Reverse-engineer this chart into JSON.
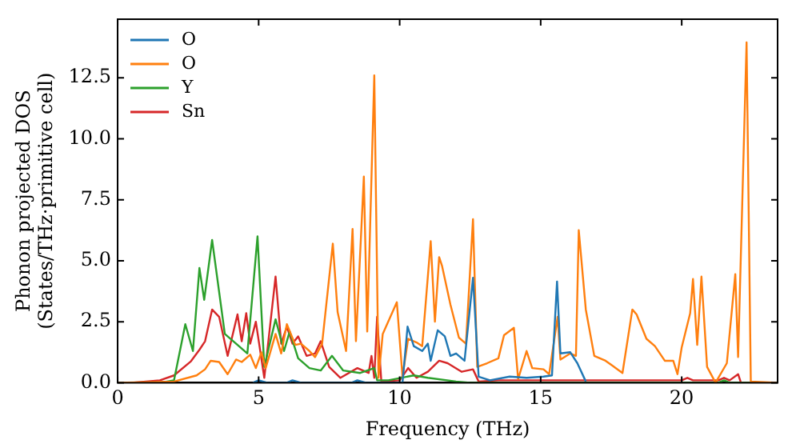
{
  "chart_data": {
    "type": "line",
    "xlabel": "Frequency (THz)",
    "ylabel": "Phonon projected DOS\n(States/THz·primitive cell)",
    "xlim": [
      0,
      23.4
    ],
    "ylim": [
      0,
      14.9
    ],
    "xticks": [
      0,
      5,
      10,
      15,
      20
    ],
    "yticks": [
      {
        "value": 0,
        "label": "0.0"
      },
      {
        "value": 2.5,
        "label": "2.5"
      },
      {
        "value": 5,
        "label": "5.0"
      },
      {
        "value": 7.5,
        "label": "7.5"
      },
      {
        "value": 10,
        "label": "10.0"
      },
      {
        "value": 12.5,
        "label": "12.5"
      }
    ],
    "legend": "top left",
    "grid": false,
    "marker": "none",
    "line_style": "solid",
    "series": [
      {
        "name": "O",
        "color": "#1f77b4",
        "x": [
          4.8,
          5.0,
          5.3,
          6.0,
          6.2,
          6.5,
          8.3,
          8.5,
          8.8,
          10.1,
          10.28,
          10.5,
          10.8,
          11.0,
          11.1,
          11.35,
          11.6,
          11.8,
          12.0,
          12.3,
          12.6,
          12.8,
          13.2,
          13.9,
          14.5,
          15.1,
          15.4,
          15.58,
          15.7,
          16.05,
          16.3,
          16.6
        ],
        "values": [
          0,
          0.1,
          0,
          0,
          0.1,
          0,
          0,
          0.1,
          0,
          0,
          2.3,
          1.5,
          1.3,
          1.6,
          0.9,
          2.15,
          1.9,
          1.1,
          1.2,
          0.9,
          4.3,
          0.25,
          0.1,
          0.25,
          0.2,
          0.25,
          0.3,
          4.15,
          1.2,
          1.25,
          0.8,
          0.05
        ]
      },
      {
        "name": "O",
        "color": "#ff7f0e",
        "x": [
          0,
          2.0,
          2.8,
          3.1,
          3.3,
          3.6,
          3.9,
          4.2,
          4.4,
          4.7,
          4.9,
          5.1,
          5.25,
          5.6,
          5.8,
          6.0,
          6.3,
          6.5,
          6.8,
          7.0,
          7.25,
          7.63,
          7.8,
          8.1,
          8.33,
          8.45,
          8.73,
          8.85,
          9.1,
          9.25,
          9.4,
          9.9,
          10.1,
          10.3,
          10.6,
          10.8,
          11.1,
          11.25,
          11.4,
          11.5,
          11.8,
          12.1,
          12.35,
          12.6,
          12.75,
          13.1,
          13.5,
          13.7,
          14.05,
          14.2,
          14.5,
          14.7,
          15.1,
          15.3,
          15.6,
          15.7,
          16.05,
          16.25,
          16.35,
          16.6,
          16.9,
          17.3,
          17.9,
          18.25,
          18.4,
          18.75,
          19.05,
          19.4,
          19.7,
          19.85,
          20.0,
          20.3,
          20.4,
          20.55,
          20.7,
          20.9,
          21.2,
          21.6,
          21.9,
          22.0,
          22.3,
          22.45,
          23.4
        ],
        "values": [
          0,
          0.05,
          0.3,
          0.55,
          0.9,
          0.85,
          0.35,
          0.95,
          0.85,
          1.15,
          0.6,
          1.25,
          0.6,
          2.0,
          1.2,
          2.4,
          1.55,
          1.6,
          1.3,
          1.05,
          1.6,
          5.7,
          2.9,
          1.3,
          6.3,
          1.7,
          8.45,
          2.1,
          12.6,
          0.2,
          2.0,
          3.3,
          0.25,
          1.8,
          1.65,
          1.5,
          5.8,
          2.5,
          5.15,
          4.8,
          3.2,
          1.85,
          1.6,
          6.7,
          0.65,
          0.8,
          1.0,
          1.95,
          2.25,
          0.15,
          1.3,
          0.6,
          0.55,
          0.35,
          2.7,
          0.95,
          1.2,
          1.1,
          6.25,
          3.0,
          1.1,
          0.9,
          0.4,
          3.0,
          2.8,
          1.8,
          1.5,
          0.9,
          0.9,
          0.35,
          1.45,
          2.85,
          4.25,
          1.55,
          4.35,
          0.65,
          0,
          0.8,
          4.45,
          1.05,
          13.95,
          0.05,
          0
        ]
      },
      {
        "name": "Y",
        "color": "#2ca02c",
        "x": [
          0,
          1.5,
          2.0,
          2.4,
          2.67,
          2.9,
          3.07,
          3.35,
          3.8,
          4.3,
          4.6,
          4.96,
          5.2,
          5.6,
          5.9,
          6.1,
          6.4,
          6.8,
          7.2,
          7.6,
          8.0,
          8.6,
          9.1,
          9.2,
          9.6,
          10.5,
          11.0,
          12.0,
          12.5,
          21.3,
          21.5,
          21.7,
          23.4
        ],
        "values": [
          0,
          0,
          0.1,
          2.4,
          1.3,
          4.7,
          3.4,
          5.85,
          2.0,
          1.5,
          1.2,
          6.0,
          0.65,
          2.6,
          1.3,
          2.1,
          1.0,
          0.6,
          0.5,
          1.1,
          0.5,
          0.4,
          0.6,
          0.1,
          0.1,
          0.3,
          0.2,
          0.05,
          0,
          0,
          0.1,
          0,
          0
        ]
      },
      {
        "name": "Sn",
        "color": "#d62728",
        "x": [
          0,
          0.5,
          1.5,
          2.0,
          2.6,
          2.9,
          3.1,
          3.35,
          3.6,
          3.9,
          4.25,
          4.4,
          4.56,
          4.7,
          4.9,
          5.2,
          5.6,
          5.8,
          6.0,
          6.2,
          6.4,
          6.7,
          7.0,
          7.2,
          7.5,
          7.9,
          8.5,
          8.9,
          9.0,
          9.1,
          9.2,
          9.35,
          10.0,
          10.3,
          10.6,
          11.0,
          11.4,
          11.7,
          12.2,
          12.6,
          12.8,
          13.5,
          20.0,
          20.2,
          20.4,
          21.3,
          21.5,
          21.7,
          22.0,
          22.1,
          23.4
        ],
        "values": [
          0,
          0,
          0.1,
          0.3,
          0.88,
          1.35,
          1.7,
          3.0,
          2.7,
          1.1,
          2.8,
          1.7,
          2.85,
          1.6,
          2.5,
          0.2,
          4.35,
          1.6,
          2.3,
          1.6,
          1.9,
          1.1,
          1.2,
          1.7,
          0.65,
          0.2,
          0.6,
          0.4,
          1.1,
          0.2,
          2.7,
          0.05,
          0.1,
          0.6,
          0.2,
          0.45,
          0.9,
          0.8,
          0.45,
          0.55,
          0.05,
          0.1,
          0.1,
          0.2,
          0.1,
          0.1,
          0.2,
          0.1,
          0.35,
          0,
          0
        ]
      }
    ]
  }
}
